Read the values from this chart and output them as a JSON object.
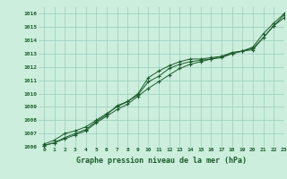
{
  "title": "Graphe pression niveau de la mer (hPa)",
  "background_color": "#cceedd",
  "grid_color": "#99ccbb",
  "line_color": "#1a5c2a",
  "xlim": [
    -0.5,
    23
  ],
  "ylim": [
    1006,
    1016.5
  ],
  "xticks": [
    0,
    1,
    2,
    3,
    4,
    5,
    6,
    7,
    8,
    9,
    10,
    11,
    12,
    13,
    14,
    15,
    16,
    17,
    18,
    19,
    20,
    21,
    22,
    23
  ],
  "yticks": [
    1006,
    1007,
    1008,
    1009,
    1010,
    1011,
    1012,
    1013,
    1014,
    1015,
    1016
  ],
  "series1": [
    1006.2,
    1006.5,
    1007.0,
    1007.2,
    1007.5,
    1008.0,
    1008.5,
    1009.0,
    1009.4,
    1010.0,
    1011.2,
    1011.7,
    1012.1,
    1012.4,
    1012.6,
    1012.6,
    1012.7,
    1012.8,
    1013.1,
    1013.2,
    1013.4,
    1014.2,
    1015.1,
    1015.7
  ],
  "series2": [
    1006.1,
    1006.3,
    1006.6,
    1006.9,
    1007.2,
    1007.8,
    1008.3,
    1008.8,
    1009.2,
    1009.8,
    1010.4,
    1010.9,
    1011.4,
    1011.9,
    1012.2,
    1012.4,
    1012.6,
    1012.7,
    1013.0,
    1013.2,
    1013.5,
    1014.5,
    1015.3,
    1016.0
  ],
  "series3": [
    1006.1,
    1006.3,
    1006.7,
    1007.0,
    1007.3,
    1007.9,
    1008.4,
    1009.1,
    1009.4,
    1009.9,
    1010.9,
    1011.3,
    1011.9,
    1012.2,
    1012.4,
    1012.5,
    1012.6,
    1012.8,
    1013.0,
    1013.2,
    1013.3,
    1014.2,
    1015.1,
    1015.9
  ]
}
